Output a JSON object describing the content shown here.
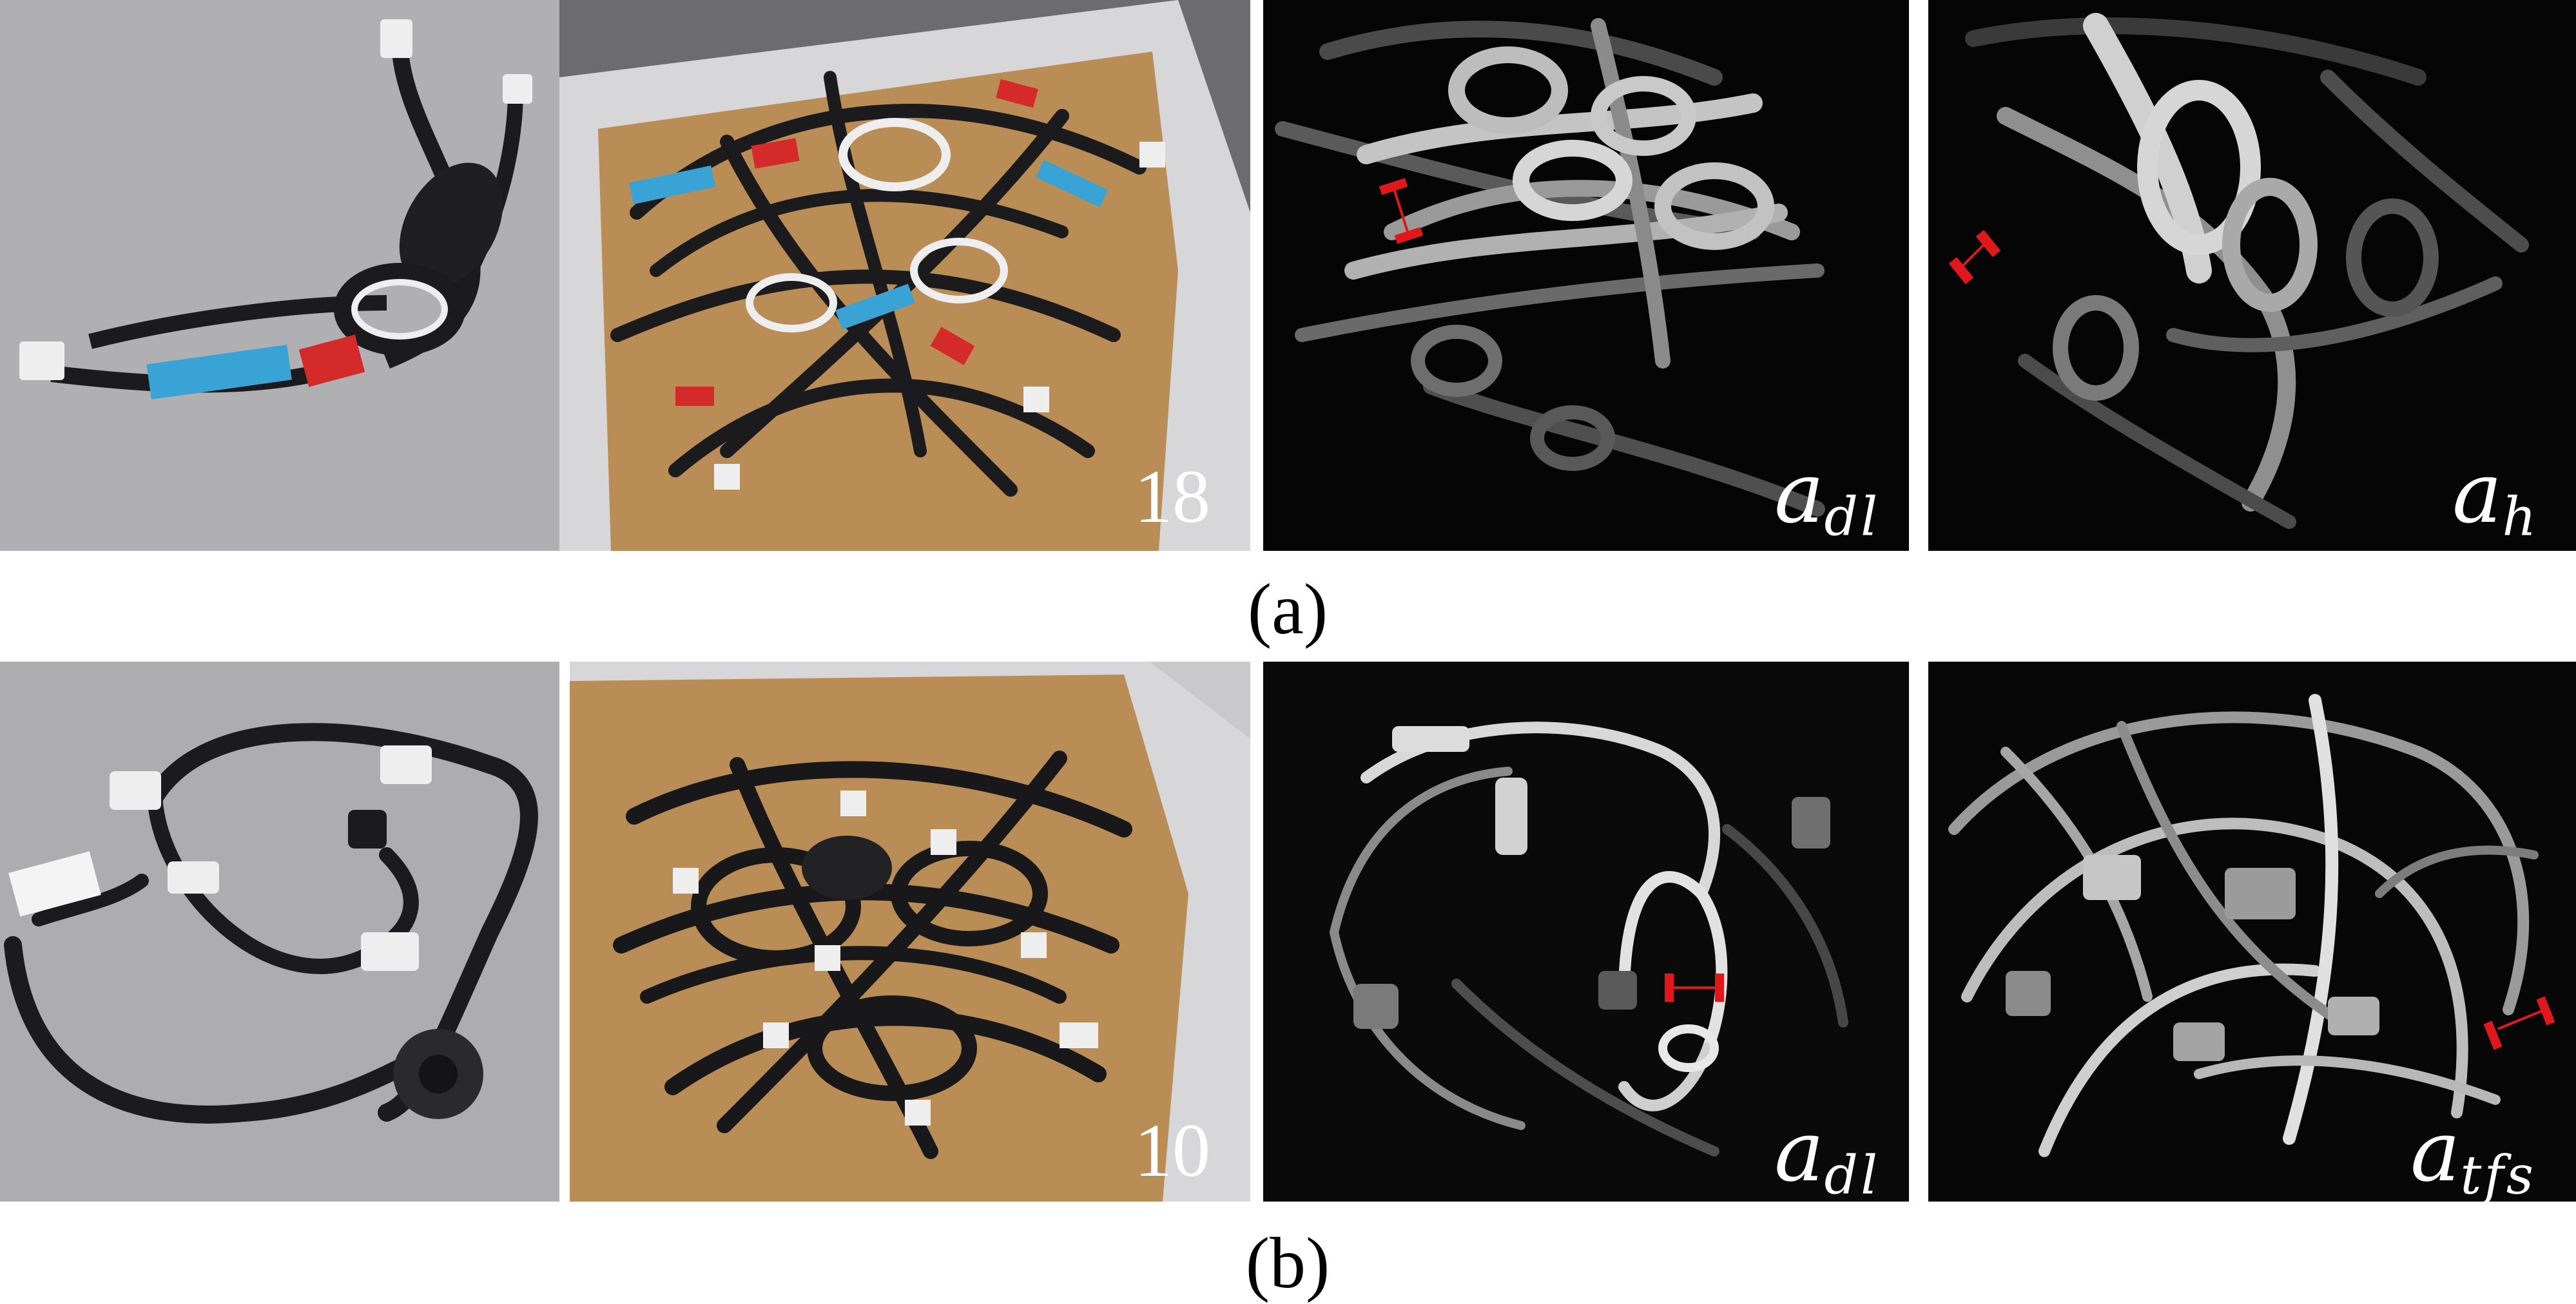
{
  "rows": [
    {
      "caption": "(a)",
      "count_label": "18",
      "depth_labels": [
        {
          "base": "a",
          "sub": "dl"
        },
        {
          "base": "a",
          "sub": "h"
        }
      ]
    },
    {
      "caption": "(b)",
      "count_label": "10",
      "depth_labels": [
        {
          "base": "a",
          "sub": "dl"
        },
        {
          "base": "a",
          "sub": "tfs"
        }
      ]
    }
  ],
  "colors": {
    "background": "#ffffff",
    "table_gray": "#a9a8ab",
    "box_cardboard": "#b98d55",
    "cable_black": "#1b1b1d",
    "label_blue": "#3aa3d6",
    "sleeve_red": "#d42a2a",
    "connector_white": "#eeeeee",
    "depth_background": "#050505",
    "depth_object": "#bdbdbd",
    "marker_red": "#e0181b"
  }
}
